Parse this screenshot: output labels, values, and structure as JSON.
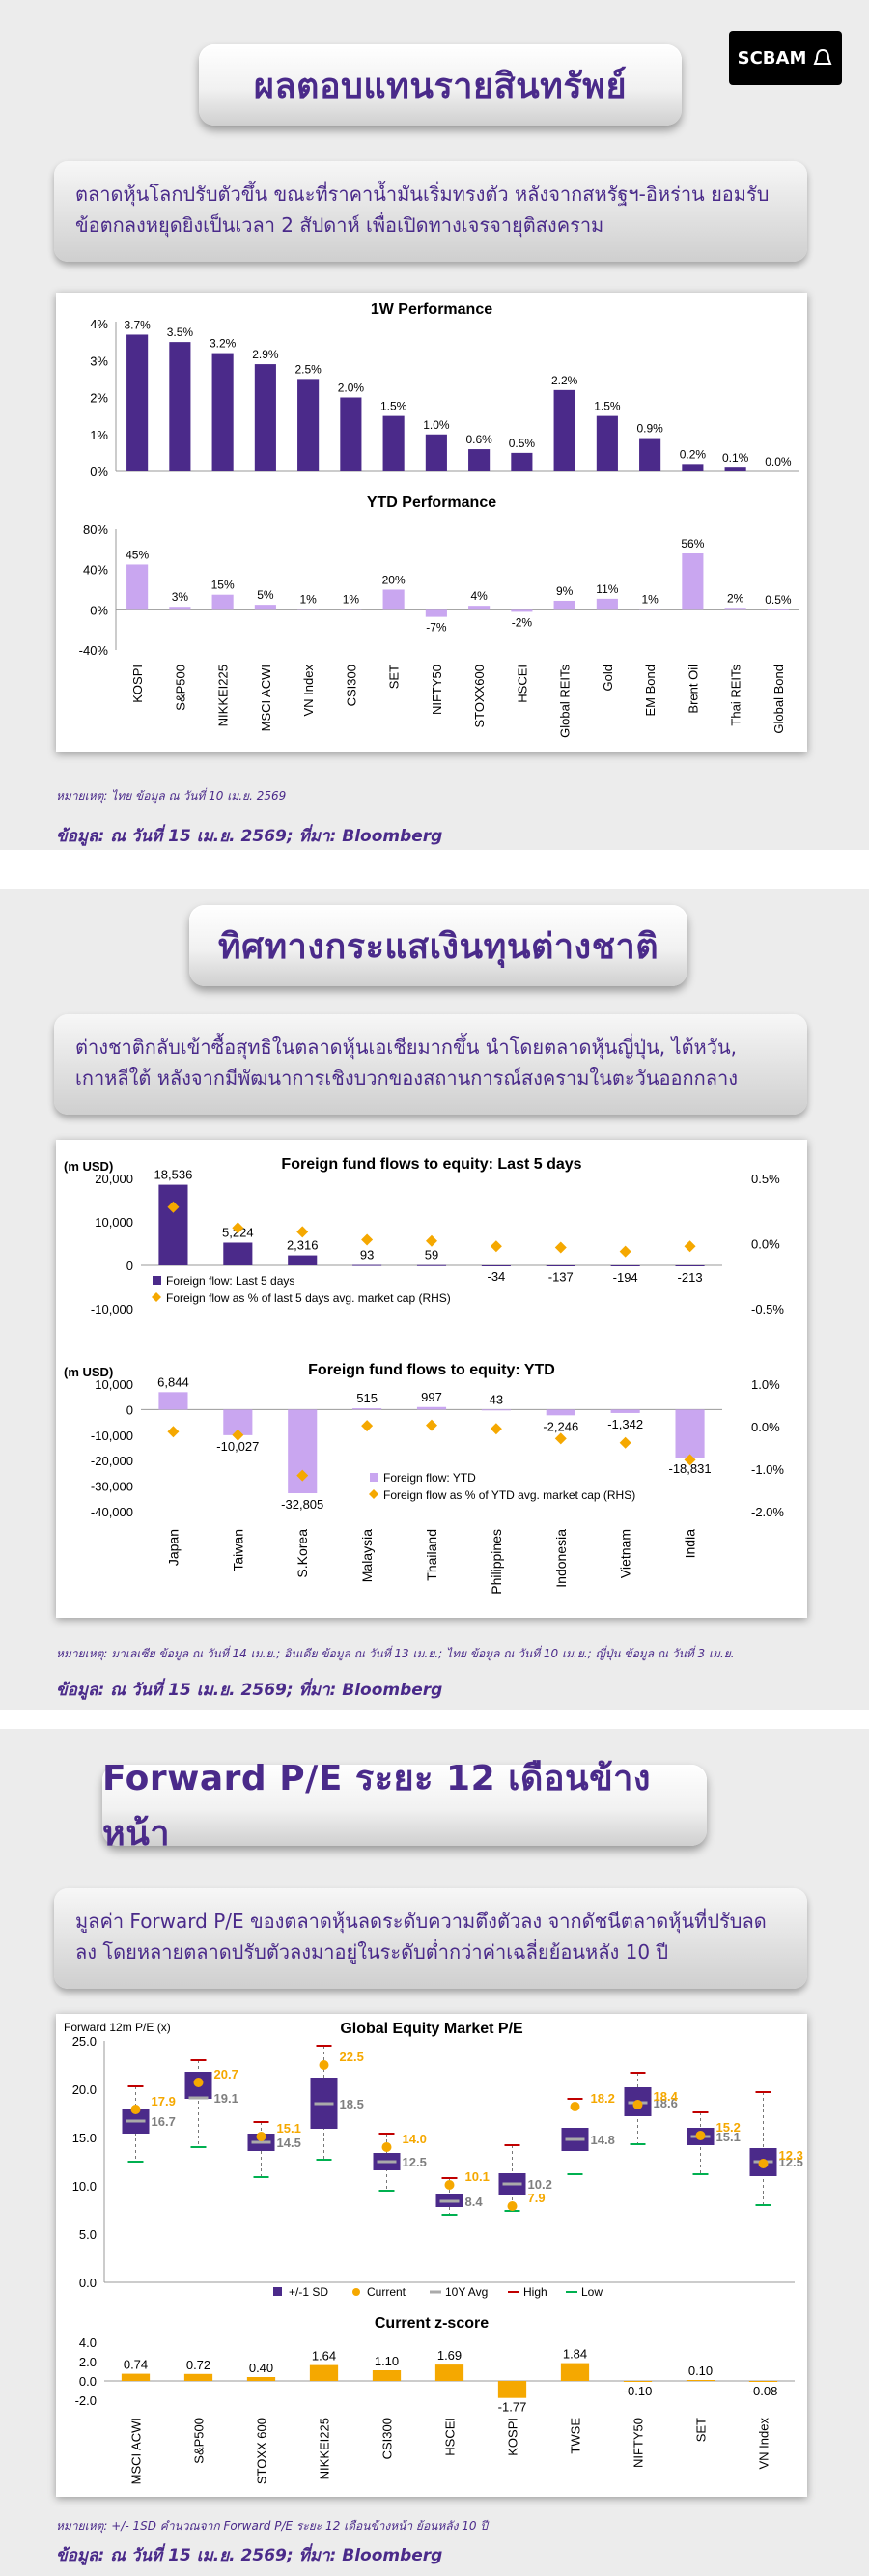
{
  "brand": {
    "logo_text": "SCBAM"
  },
  "sections": {
    "s1": {
      "title": "ผลตอบแทนรายสินทรัพย์",
      "desc": "ตลาดหุ้นโลกปรับตัวขึ้น ขณะที่ราคาน้ำมันเริ่มทรงตัว หลังจากสหรัฐฯ-อิหร่าน ยอมรับข้อตกลงหยุดยิงเป็นเวลา 2 สัปดาห์ เพื่อเปิดทางเจรจายุติสงคราม",
      "note": "หมายเหตุ: ไทย ข้อมูล ณ วันที่ 10 เม.ย. 2569",
      "source": "ข้อมูล: ณ วันที่ 15 เม.ย. 2569; ที่มา: Bloomberg"
    },
    "s2": {
      "title": "ทิศทางกระแสเงินทุนต่างชาติ",
      "desc": "ต่างชาติกลับเข้าซื้อสุทธิในตลาดหุ้นเอเชียมากขึ้น นำโดยตลาดหุ้นญี่ปุ่น, ไต้หวัน, เกาหลีใต้ หลังจากมีพัฒนาการเชิงบวกของสถานการณ์สงครามในตะวันออกกลาง",
      "note": "หมายเหตุ: มาเลเซีย ข้อมูล ณ วันที่ 14 เม.ย.; อินเดีย ข้อมูล ณ วันที่ 13 เม.ย.; ไทย ข้อมูล ณ วันที่ 10 เม.ย.; ญี่ปุ่น ข้อมูล ณ วันที่ 3 เม.ย.",
      "source": "ข้อมูล: ณ วันที่ 15 เม.ย. 2569; ที่มา: Bloomberg"
    },
    "s3": {
      "title": "Forward P/E ระยะ 12 เดือนข้างหน้า",
      "desc": "มูลค่า Forward P/E ของตลาดหุ้นลดระดับความตึงตัวลง จากดัชนีตลาดหุ้นที่ปรับลดลง โดยหลายตลาดปรับตัวลงมาอยู่ในระดับต่ำกว่าค่าเฉลี่ยย้อนหลัง 10 ปี",
      "note": "หมายเหตุ: +/- 1SD คำนวณจาก Forward P/E ระยะ 12 เดือนข้างหน้า ย้อนหลัง 10 ปี",
      "source": "ข้อมูล: ณ วันที่ 15 เม.ย. 2569; ที่มา: Bloomberg"
    }
  },
  "chart_data": [
    {
      "type": "bar",
      "title": "1W Performance",
      "categories": [
        "KOSPI",
        "S&P500",
        "NIKKEI225",
        "MSCI ACWI",
        "VN Index",
        "CSI300",
        "SET",
        "NIFTY50",
        "STOXX600",
        "HSCEI",
        "Global REITs",
        "Gold",
        "EM Bond",
        "Brent Oil",
        "Thai REITs",
        "Global Bond"
      ],
      "values": [
        3.7,
        3.5,
        3.2,
        2.9,
        2.5,
        2.0,
        1.5,
        1.0,
        0.6,
        0.5,
        2.2,
        1.5,
        0.9,
        0.2,
        0.1,
        0.0
      ],
      "value_labels": [
        "3.7%",
        "3.5%",
        "3.2%",
        "2.9%",
        "2.5%",
        "2.0%",
        "1.5%",
        "1.0%",
        "0.6%",
        "0.5%",
        "2.2%",
        "1.5%",
        "0.9%",
        "0.2%",
        "0.1%",
        "0.0%"
      ],
      "yticks": [
        "0%",
        "1%",
        "2%",
        "3%",
        "4%"
      ],
      "ylim": [
        0,
        4
      ],
      "color": "#4b2a8a"
    },
    {
      "type": "bar",
      "title": "YTD Performance",
      "categories": [
        "KOSPI",
        "S&P500",
        "NIKKEI225",
        "MSCI ACWI",
        "VN Index",
        "CSI300",
        "SET",
        "NIFTY50",
        "STOXX600",
        "HSCEI",
        "Global REITs",
        "Gold",
        "EM Bond",
        "Brent Oil",
        "Thai REITs",
        "Global Bond"
      ],
      "values": [
        45,
        3,
        15,
        5,
        1,
        1,
        20,
        -7,
        4,
        -2,
        9,
        11,
        1,
        56,
        2,
        0.5
      ],
      "value_labels": [
        "45%",
        "3%",
        "15%",
        "5%",
        "1%",
        "1%",
        "20%",
        "-7%",
        "4%",
        "-2%",
        "9%",
        "11%",
        "1%",
        "56%",
        "2%",
        "0.5%"
      ],
      "yticks": [
        "-40%",
        "0%",
        "40%",
        "80%"
      ],
      "ylim": [
        -40,
        80
      ],
      "color": "#c9a6f0"
    },
    {
      "type": "bar",
      "title": "Foreign fund flows to equity: Last 5 days",
      "ylabel": "(m USD)",
      "categories": [
        "Japan",
        "Taiwan",
        "S.Korea",
        "Malaysia",
        "Thailand",
        "Philippines",
        "Indonesia",
        "Vietnam",
        "India"
      ],
      "series": [
        {
          "name": "Foreign flow: Last 5 days",
          "values": [
            18536,
            5224,
            2316,
            93,
            59,
            -34,
            -137,
            -194,
            -213
          ],
          "color": "#4b2a8a"
        },
        {
          "name": "Foreign flow as % of last 5 days avg. market cap (RHS)",
          "values": [
            0.28,
            0.12,
            0.09,
            0.03,
            0.02,
            -0.02,
            -0.03,
            -0.06,
            -0.02
          ],
          "color": "#f5a800"
        }
      ],
      "value_labels": [
        "18,536",
        "5,224",
        "2,316",
        "93",
        "59",
        "-34",
        "-137",
        "-194",
        "-213"
      ],
      "yticks": [
        "-10,000",
        "0",
        "10,000",
        "20,000"
      ],
      "ylim": [
        -10000,
        20000
      ],
      "y2ticks": [
        "-0.5%",
        "0.0%",
        "0.5%"
      ],
      "y2lim": [
        -0.5,
        0.5
      ]
    },
    {
      "type": "bar",
      "title": "Foreign fund flows to equity: YTD",
      "ylabel": "(m USD)",
      "categories": [
        "Japan",
        "Taiwan",
        "S.Korea",
        "Malaysia",
        "Thailand",
        "Philippines",
        "Indonesia",
        "Vietnam",
        "India"
      ],
      "series": [
        {
          "name": "Foreign flow: YTD",
          "values": [
            6844,
            -10027,
            -32805,
            515,
            997,
            43,
            -2246,
            -1342,
            -18831
          ],
          "color": "#c9a6f0"
        },
        {
          "name": "Foreign flow as % of YTD avg. market cap (RHS)",
          "values": [
            -0.12,
            -0.2,
            -1.15,
            0.02,
            0.03,
            -0.05,
            -0.28,
            -0.38,
            -0.78
          ],
          "color": "#f5a800"
        }
      ],
      "value_labels": [
        "6,844",
        "-10,027",
        "-32,805",
        "515",
        "997",
        "43",
        "-2,246",
        "-1,342",
        "-18,831"
      ],
      "yticks": [
        "-40,000",
        "-30,000",
        "-20,000",
        "-10,000",
        "0",
        "10,000"
      ],
      "ylim": [
        -40000,
        10000
      ],
      "y2ticks": [
        "-2.0%",
        "-1.0%",
        "0.0%",
        "1.0%"
      ],
      "y2lim": [
        -2.0,
        1.0
      ]
    },
    {
      "type": "box",
      "title": "Global Equity Market P/E",
      "ylabel": "Forward 12m P/E (x)",
      "categories": [
        "MSCI ACWI",
        "S&P500",
        "STOXX 600",
        "NIKKEI225",
        "CSI300",
        "HSCEI",
        "KOSPI",
        "TWSE",
        "NIFTY50",
        "SET",
        "VN Index"
      ],
      "sd_low": [
        15.4,
        19.0,
        13.6,
        15.9,
        11.6,
        7.8,
        9.0,
        13.6,
        17.2,
        14.2,
        11.0
      ],
      "sd_high": [
        18.0,
        21.8,
        15.4,
        21.2,
        13.4,
        9.2,
        11.3,
        16.0,
        20.2,
        16.0,
        13.9
      ],
      "current": [
        17.9,
        20.7,
        15.1,
        22.5,
        14.0,
        10.1,
        7.9,
        18.2,
        18.4,
        15.2,
        12.3
      ],
      "avg": [
        16.7,
        19.1,
        14.5,
        18.5,
        12.5,
        8.4,
        10.2,
        14.8,
        18.6,
        15.1,
        12.5
      ],
      "high": [
        20.3,
        23.0,
        16.6,
        24.5,
        15.4,
        10.8,
        14.2,
        19.0,
        21.7,
        17.6,
        19.7
      ],
      "low": [
        12.5,
        14.0,
        10.9,
        12.7,
        9.5,
        7.0,
        7.4,
        11.2,
        14.3,
        11.2,
        8.0
      ],
      "current_labels": [
        "17.9",
        "20.7",
        "15.1",
        "22.5",
        "14.0",
        "10.1",
        "7.9",
        "18.2",
        "18.4",
        "15.2",
        "12.3"
      ],
      "avg_labels": [
        "16.7",
        "19.1",
        "14.5",
        "18.5",
        "12.5",
        "8.4",
        "10.2",
        "14.8",
        "18.6",
        "15.1",
        "12.5"
      ],
      "legend": [
        "+/-1 SD",
        "Current",
        "10Y Avg",
        "High",
        "Low"
      ],
      "yticks": [
        "0.0",
        "5.0",
        "10.0",
        "15.0",
        "20.0",
        "25.0"
      ],
      "ylim": [
        0,
        25
      ]
    },
    {
      "type": "bar",
      "title": "Current z-score",
      "categories": [
        "MSCI ACWI",
        "S&P500",
        "STOXX 600",
        "NIKKEI225",
        "CSI300",
        "HSCEI",
        "KOSPI",
        "TWSE",
        "NIFTY50",
        "SET",
        "VN Index"
      ],
      "values": [
        0.74,
        0.72,
        0.4,
        1.64,
        1.1,
        1.69,
        -1.77,
        1.84,
        -0.1,
        0.1,
        -0.08
      ],
      "value_labels": [
        "0.74",
        "0.72",
        "0.40",
        "1.64",
        "1.10",
        "1.69",
        "-1.77",
        "1.84",
        "-0.10",
        "0.10",
        "-0.08"
      ],
      "yticks": [
        "-2.0",
        "0.0",
        "2.0",
        "4.0"
      ],
      "ylim": [
        -2,
        4
      ],
      "color": "#f5a800"
    }
  ]
}
